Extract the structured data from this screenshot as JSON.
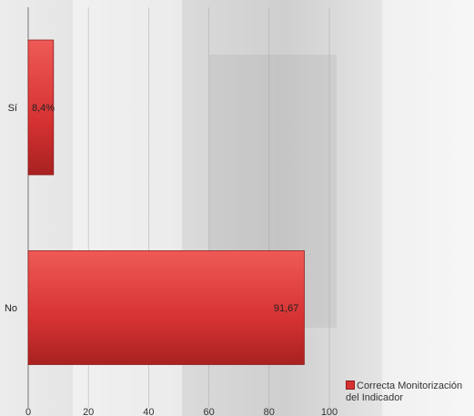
{
  "chart_data": {
    "type": "bar",
    "orientation": "horizontal",
    "categories": [
      "Sí",
      "No"
    ],
    "series": [
      {
        "name": "Correcta Monitorización del Indicador",
        "values": [
          8.4,
          91.67
        ],
        "color": "#d63232"
      }
    ],
    "data_labels": [
      "8,4%",
      "91,67"
    ],
    "x_ticks": [
      "0",
      "20",
      "40",
      "60",
      "80",
      "100"
    ],
    "xlim": [
      0,
      100
    ],
    "title": "",
    "xlabel": "",
    "ylabel": "",
    "grid": "vertical gridlines",
    "legend_position": "bottom-right"
  }
}
